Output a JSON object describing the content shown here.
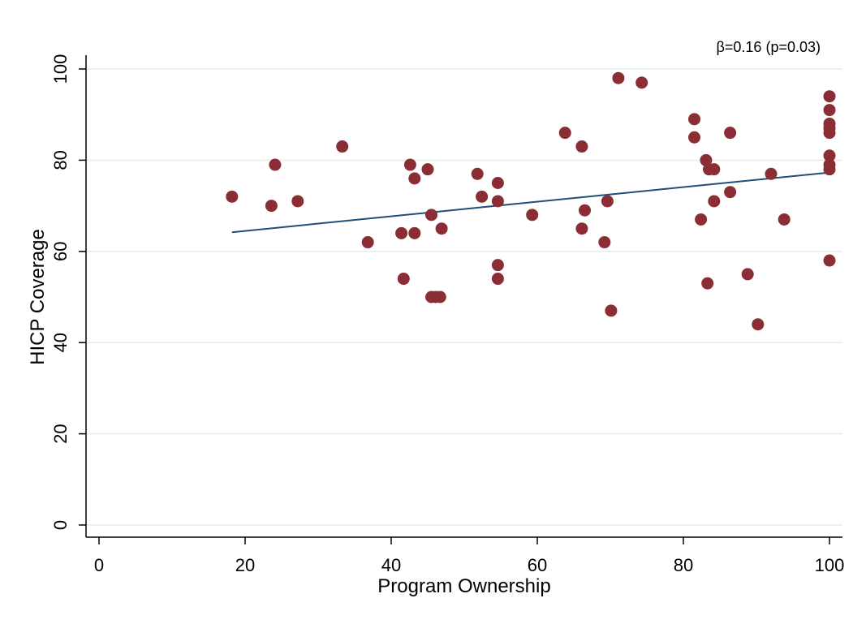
{
  "chart_data": {
    "type": "scatter",
    "xlabel": "Program Ownership",
    "ylabel": "HICP Coverage",
    "annotation": "β=0.16 (p=0.03)",
    "xlim": [
      0,
      100
    ],
    "ylim": [
      0,
      100
    ],
    "x_ticks": [
      0,
      20,
      40,
      60,
      80,
      100
    ],
    "y_ticks": [
      0,
      20,
      40,
      60,
      80,
      100
    ],
    "grid": "horizontal",
    "colors": {
      "points": "#8b2d34",
      "fit_line": "#1f4e79",
      "grid": "#e6ecec"
    },
    "fit_line": {
      "x": [
        18.2,
        100
      ],
      "y": [
        64.2,
        77.3
      ]
    },
    "points": [
      {
        "x": 18.2,
        "y": 72
      },
      {
        "x": 23.6,
        "y": 70
      },
      {
        "x": 24.1,
        "y": 79
      },
      {
        "x": 27.2,
        "y": 71
      },
      {
        "x": 33.3,
        "y": 83
      },
      {
        "x": 36.8,
        "y": 62
      },
      {
        "x": 41.4,
        "y": 64
      },
      {
        "x": 41.7,
        "y": 54
      },
      {
        "x": 42.6,
        "y": 79
      },
      {
        "x": 43.2,
        "y": 76
      },
      {
        "x": 43.2,
        "y": 64
      },
      {
        "x": 45.0,
        "y": 78
      },
      {
        "x": 45.5,
        "y": 68
      },
      {
        "x": 45.5,
        "y": 50
      },
      {
        "x": 46.1,
        "y": 50
      },
      {
        "x": 46.7,
        "y": 50
      },
      {
        "x": 46.9,
        "y": 65
      },
      {
        "x": 51.8,
        "y": 77
      },
      {
        "x": 52.4,
        "y": 72
      },
      {
        "x": 54.6,
        "y": 75
      },
      {
        "x": 54.6,
        "y": 71
      },
      {
        "x": 54.6,
        "y": 57
      },
      {
        "x": 54.6,
        "y": 54
      },
      {
        "x": 59.3,
        "y": 68
      },
      {
        "x": 63.8,
        "y": 86
      },
      {
        "x": 66.1,
        "y": 83
      },
      {
        "x": 66.1,
        "y": 65
      },
      {
        "x": 66.5,
        "y": 69
      },
      {
        "x": 69.2,
        "y": 62
      },
      {
        "x": 69.6,
        "y": 71
      },
      {
        "x": 70.1,
        "y": 47
      },
      {
        "x": 71.1,
        "y": 98
      },
      {
        "x": 74.3,
        "y": 97
      },
      {
        "x": 81.5,
        "y": 89
      },
      {
        "x": 81.5,
        "y": 85
      },
      {
        "x": 82.4,
        "y": 67
      },
      {
        "x": 83.1,
        "y": 80
      },
      {
        "x": 83.3,
        "y": 53
      },
      {
        "x": 83.5,
        "y": 78
      },
      {
        "x": 84.2,
        "y": 78
      },
      {
        "x": 84.2,
        "y": 71
      },
      {
        "x": 86.4,
        "y": 86
      },
      {
        "x": 86.4,
        "y": 73
      },
      {
        "x": 88.8,
        "y": 55
      },
      {
        "x": 90.2,
        "y": 44
      },
      {
        "x": 92.0,
        "y": 77
      },
      {
        "x": 93.8,
        "y": 67
      },
      {
        "x": 100,
        "y": 94
      },
      {
        "x": 100,
        "y": 91
      },
      {
        "x": 100,
        "y": 88
      },
      {
        "x": 100,
        "y": 87
      },
      {
        "x": 100,
        "y": 86
      },
      {
        "x": 100,
        "y": 81
      },
      {
        "x": 100,
        "y": 79
      },
      {
        "x": 100,
        "y": 78
      },
      {
        "x": 100,
        "y": 58
      }
    ]
  }
}
